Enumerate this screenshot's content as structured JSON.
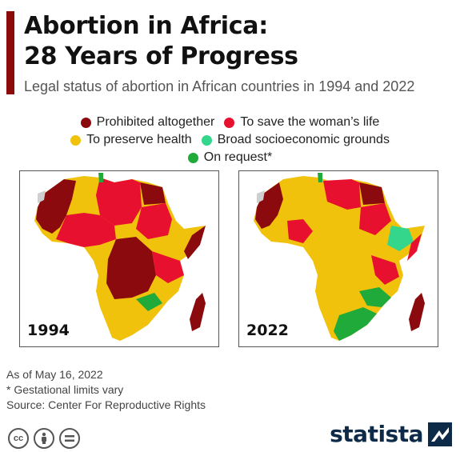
{
  "header": {
    "title_line1": "Abortion in Africa:",
    "title_line2": "28 Years of Progress",
    "subtitle": "Legal status of abortion in African countries in 1994 and 2022"
  },
  "legend": {
    "prohibited": "Prohibited altogether",
    "womans_life": "To save the woman’s life",
    "health": "To preserve health",
    "socioeconomic": "Broad socioeconomic grounds",
    "on_request": "On request*"
  },
  "colors": {
    "prohibited": "#8b0a0e",
    "womans_life": "#e8102f",
    "health": "#f0c20c",
    "socioeconomic": "#33d68a",
    "on_request": "#1faa3a",
    "no_data": "#cfcfcf"
  },
  "maps": {
    "left_year": "1994",
    "right_year": "2022"
  },
  "notes": {
    "as_of": "As of May 16, 2022",
    "gestational": "* Gestational limits vary",
    "source": "Source: Center For Reproductive Rights"
  },
  "footer": {
    "brand": "statista"
  }
}
